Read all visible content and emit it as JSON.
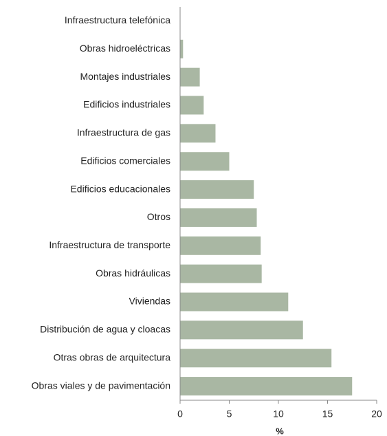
{
  "chart_data": {
    "type": "bar",
    "orientation": "horizontal",
    "categories": [
      "Infraestructura telefónica",
      "Obras hidroeléctricas",
      "Montajes industriales",
      "Edificios industriales",
      "Infraestructura de gas",
      "Edificios comerciales",
      "Edificios educacionales",
      "Otros",
      "Infraestructura de transporte",
      "Obras hidráulicas",
      "Viviendas",
      "Distribución de agua y cloacas",
      "Otras obras de arquitectura",
      "Obras viales y de pavimentación"
    ],
    "values": [
      0,
      0.3,
      2.0,
      2.4,
      3.6,
      5.0,
      7.5,
      7.8,
      8.2,
      8.3,
      11.0,
      12.5,
      15.4,
      17.5
    ],
    "color": "#a9b7a3",
    "xlabel": "%",
    "xlim": [
      0,
      20
    ],
    "xticks": [
      0,
      5,
      10,
      15,
      20
    ],
    "grid": false
  }
}
